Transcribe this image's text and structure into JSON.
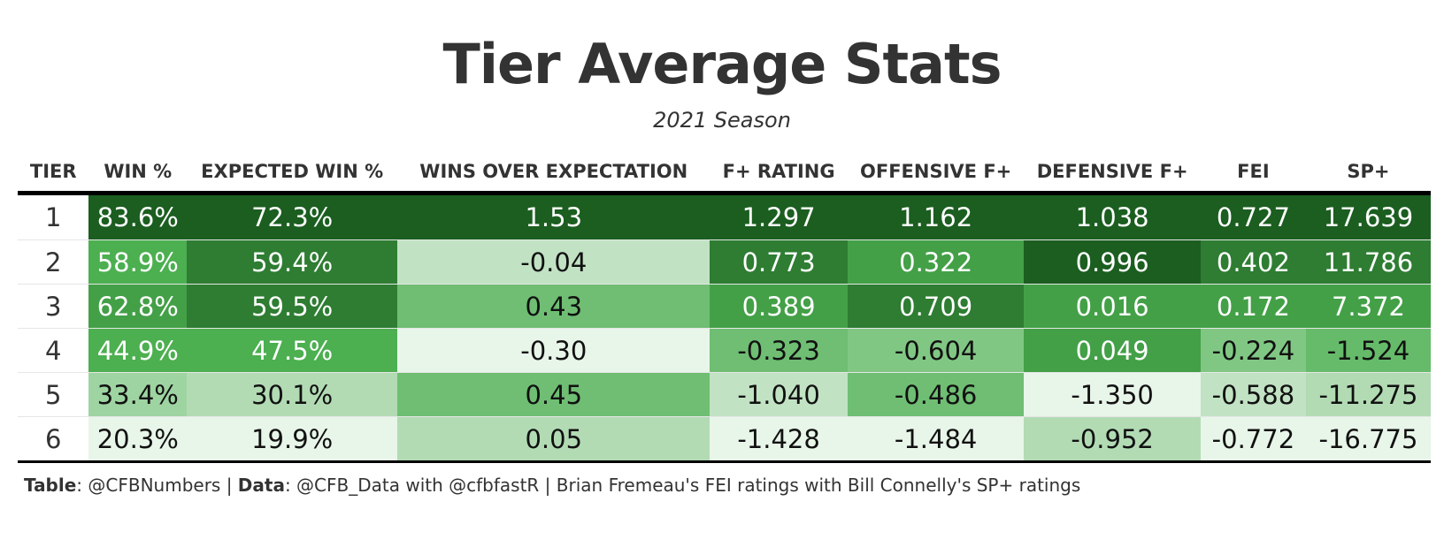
{
  "title": "Tier Average Stats",
  "subtitle": "2021 Season",
  "chart_data": {
    "type": "table",
    "columns": [
      "TIER",
      "WIN %",
      "EXPECTED WIN %",
      "WINS OVER EXPECTATION",
      "F+ RATING",
      "OFFENSIVE F+",
      "DEFENSIVE F+",
      "FEI",
      "SP+"
    ],
    "rows": [
      [
        "1",
        "83.6%",
        "72.3%",
        "1.53",
        "1.297",
        "1.162",
        "1.038",
        "0.727",
        "17.639"
      ],
      [
        "2",
        "58.9%",
        "59.4%",
        "-0.04",
        "0.773",
        "0.322",
        "0.996",
        "0.402",
        "11.786"
      ],
      [
        "3",
        "62.8%",
        "59.5%",
        "0.43",
        "0.389",
        "0.709",
        "0.016",
        "0.172",
        "7.372"
      ],
      [
        "4",
        "44.9%",
        "47.5%",
        "-0.30",
        "-0.323",
        "-0.604",
        "0.049",
        "-0.224",
        "-1.524"
      ],
      [
        "5",
        "33.4%",
        "30.1%",
        "0.45",
        "-1.040",
        "-0.486",
        "-1.350",
        "-0.588",
        "-11.275"
      ],
      [
        "6",
        "20.3%",
        "19.9%",
        "0.05",
        "-1.428",
        "-1.484",
        "-0.952",
        "-0.772",
        "-16.775"
      ]
    ],
    "cell_colors": [
      [
        null,
        "#1b5e20",
        "#1b5e20",
        "#1b5e20",
        "#1b5e20",
        "#1b5e20",
        "#1b5e20",
        "#1b5e20",
        "#1b5e20"
      ],
      [
        null,
        "#4caf50",
        "#2e7d32",
        "#c1e2c3",
        "#2e7d32",
        "#43a047",
        "#1b5e20",
        "#2e7d32",
        "#2e7d32"
      ],
      [
        null,
        "#43a047",
        "#2e7d32",
        "#6fbe73",
        "#43a047",
        "#2e7d32",
        "#43a047",
        "#43a047",
        "#43a047"
      ],
      [
        null,
        "#4caf50",
        "#4caf50",
        "#e8f5e9",
        "#6fbe73",
        "#81c784",
        "#43a047",
        "#81c784",
        "#66bb6a"
      ],
      [
        null,
        "#9ed4a1",
        "#b2dbb4",
        "#6fbe73",
        "#c1e2c3",
        "#6fbe73",
        "#e8f5e9",
        "#c1e2c3",
        "#b2dbb4"
      ],
      [
        null,
        "#e8f5e9",
        "#e8f5e9",
        "#b2dbb4",
        "#e8f5e9",
        "#e8f5e9",
        "#b2dbb4",
        "#e8f5e9",
        "#e8f5e9"
      ]
    ]
  },
  "footer": {
    "table_label": "Table",
    "table_value": ": @CFBNumbers | ",
    "data_label": "Data",
    "data_value": ": @CFB_Data with @cfbfastR | Brian Fremeau's FEI ratings with Bill Connelly's SP+ ratings"
  }
}
